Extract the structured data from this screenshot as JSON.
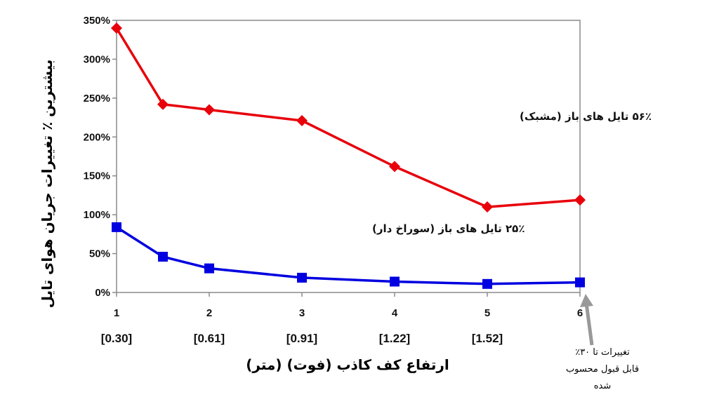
{
  "chart_data": {
    "type": "line",
    "x": [
      1,
      1.5,
      2,
      3,
      4,
      5,
      6
    ],
    "x_ticks": [
      1,
      2,
      3,
      4,
      5,
      6
    ],
    "x_tick_labels": [
      "1",
      "2",
      "3",
      "4",
      "5",
      "6"
    ],
    "x_meter_labels": [
      "[0.30]",
      "[0.61]",
      "[0.91]",
      "[1.22]",
      "[1.52]"
    ],
    "xlabel": "ارتفاع کف کاذب (فوت) (متر)",
    "ylabel": "بیشترین ٪ تغییرات جریان هوای تایل",
    "ylim": [
      0,
      350
    ],
    "y_ticks": [
      0,
      50,
      100,
      150,
      200,
      250,
      300,
      350
    ],
    "y_tick_labels": [
      "0%",
      "50%",
      "100%",
      "150%",
      "200%",
      "250%",
      "300%",
      "350%"
    ],
    "grid": false,
    "series": [
      {
        "name": "۵۶٪ تایل های باز (مشبک)",
        "color": "#e8000b",
        "marker": "diamond",
        "values": [
          340,
          242,
          235,
          221,
          162,
          110,
          119
        ]
      },
      {
        "name": "۲۵٪ تایل های باز (سوراخ دار)",
        "color": "#0000e0",
        "marker": "square",
        "values": [
          84,
          46,
          31,
          19,
          14,
          11,
          13
        ]
      }
    ],
    "annotation": {
      "lines": [
        "تغییرات تا ۳۰٪",
        "قابل قبول محسوب",
        "شده"
      ],
      "arrow_color": "#999999"
    }
  }
}
